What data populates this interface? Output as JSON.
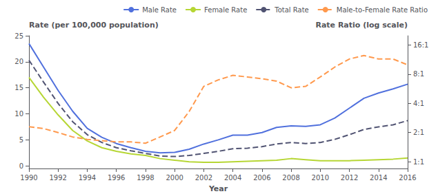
{
  "chart_data": {
    "type": "line",
    "x": [
      1990,
      1991,
      1992,
      1993,
      1994,
      1995,
      1996,
      1997,
      1998,
      1999,
      2000,
      2001,
      2002,
      2003,
      2004,
      2005,
      2006,
      2007,
      2008,
      2009,
      2010,
      2011,
      2012,
      2013,
      2014,
      2015,
      2016
    ],
    "series": [
      {
        "name": "Male Rate",
        "line_style": "solid",
        "values": [
          23.5,
          19.0,
          14.5,
          10.5,
          7.2,
          5.5,
          4.3,
          3.5,
          2.8,
          2.5,
          2.6,
          3.2,
          4.2,
          5.0,
          5.9,
          5.9,
          6.4,
          7.4,
          7.7,
          7.6,
          7.9,
          9.2,
          11.1,
          13.0,
          14.0,
          14.8,
          15.7
        ]
      },
      {
        "name": "Female Rate",
        "line_style": "solid",
        "values": [
          17.0,
          13.2,
          9.8,
          6.8,
          4.8,
          3.5,
          2.8,
          2.3,
          2.0,
          1.4,
          1.1,
          0.8,
          0.7,
          0.7,
          0.8,
          0.9,
          1.0,
          1.1,
          1.4,
          1.2,
          1.0,
          1.0,
          1.0,
          1.1,
          1.2,
          1.3,
          1.5
        ]
      },
      {
        "name": "Total Rate",
        "line_style": "dashed",
        "values": [
          20.3,
          16.1,
          12.0,
          8.5,
          6.0,
          4.5,
          3.5,
          2.9,
          2.4,
          1.9,
          1.8,
          2.0,
          2.4,
          2.8,
          3.3,
          3.4,
          3.7,
          4.2,
          4.5,
          4.3,
          4.5,
          5.1,
          6.0,
          7.0,
          7.5,
          7.9,
          8.7
        ]
      },
      {
        "name": "Male-to-Female Rate Ratio",
        "line_style": "dashed",
        "axis": "y2",
        "values": [
          2.3,
          2.2,
          2.0,
          1.8,
          1.7,
          1.65,
          1.6,
          1.6,
          1.55,
          1.8,
          2.1,
          3.3,
          6.0,
          7.0,
          7.8,
          7.5,
          7.2,
          6.8,
          5.8,
          6.0,
          7.5,
          9.5,
          11.5,
          12.5,
          11.5,
          11.5,
          10.0
        ]
      }
    ],
    "xlabel": "Year",
    "ylabel": "Rate (per 100,000 population)",
    "y2label": "Rate Ratio (log scale)",
    "xlim": [
      1990,
      2016
    ],
    "xticks": [
      1990,
      1992,
      1994,
      1996,
      1998,
      2000,
      2002,
      2004,
      2006,
      2008,
      2010,
      2012,
      2014,
      2016
    ],
    "ylim": [
      -0.5,
      25
    ],
    "yticks": [
      0,
      5,
      10,
      15,
      20,
      25
    ],
    "y2lim": [
      0.85,
      20
    ],
    "y2ticks": [
      {
        "value": 1,
        "label": "1:1"
      },
      {
        "value": 2,
        "label": "2:1"
      },
      {
        "value": 4,
        "label": "4:1"
      },
      {
        "value": 8,
        "label": "8:1"
      },
      {
        "value": 16,
        "label": "16:1"
      }
    ],
    "log": "y2",
    "grid": false,
    "legend": "upper right"
  }
}
